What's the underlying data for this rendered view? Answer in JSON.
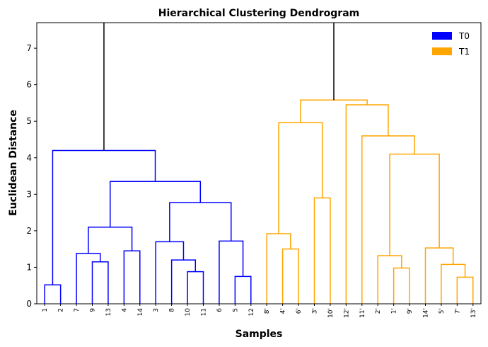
{
  "chart_data": {
    "type": "dendrogram",
    "title": "Hierarchical Clustering Dendrogram",
    "xlabel": "Samples",
    "ylabel": "Euclidean Distance",
    "ylim": [
      0,
      7.7
    ],
    "yticks": [
      0,
      1,
      2,
      3,
      4,
      5,
      6,
      7
    ],
    "leaf_labels": [
      "1",
      "2",
      "7",
      "9",
      "13",
      "4",
      "14",
      "3",
      "8",
      "10",
      "11",
      "6",
      "5",
      "12",
      "8'",
      "4'",
      "6'",
      "3'",
      "10'",
      "12'",
      "11'",
      "2'",
      "1'",
      "9'",
      "14'",
      "5'",
      "7'",
      "13'"
    ],
    "legend": [
      {
        "label": "T0",
        "color": "#0000ff"
      },
      {
        "label": "T1",
        "color": "#ffa500"
      }
    ],
    "link_color_above_threshold": "#000000",
    "root_height": 7.7,
    "merges": [
      {
        "id": "c1",
        "left": "1",
        "right": "2",
        "height": 0.52,
        "group": "T0"
      },
      {
        "id": "c2",
        "left": "9",
        "right": "13",
        "height": 1.15,
        "group": "T0"
      },
      {
        "id": "c3",
        "left": "7",
        "right": "c2",
        "height": 1.38,
        "group": "T0"
      },
      {
        "id": "c4",
        "left": "4",
        "right": "14",
        "height": 1.45,
        "group": "T0"
      },
      {
        "id": "c5",
        "left": "c3",
        "right": "c4",
        "height": 2.1,
        "group": "T0"
      },
      {
        "id": "c6",
        "left": "10",
        "right": "11",
        "height": 0.88,
        "group": "T0"
      },
      {
        "id": "c7",
        "left": "8",
        "right": "c6",
        "height": 1.2,
        "group": "T0"
      },
      {
        "id": "c8",
        "left": "3",
        "right": "c7",
        "height": 1.7,
        "group": "T0"
      },
      {
        "id": "c9",
        "left": "5",
        "right": "12",
        "height": 0.75,
        "group": "T0"
      },
      {
        "id": "c10",
        "left": "6",
        "right": "c9",
        "height": 1.72,
        "group": "T0"
      },
      {
        "id": "c11",
        "left": "c8",
        "right": "c10",
        "height": 2.77,
        "group": "T0"
      },
      {
        "id": "c12",
        "left": "c5",
        "right": "c11",
        "height": 3.35,
        "group": "T0"
      },
      {
        "id": "c13",
        "left": "c1",
        "right": "c12",
        "height": 4.2,
        "group": "T0"
      },
      {
        "id": "d1",
        "left": "4'",
        "right": "6'",
        "height": 1.5,
        "group": "T1"
      },
      {
        "id": "d2",
        "left": "8'",
        "right": "d1",
        "height": 1.92,
        "group": "T1"
      },
      {
        "id": "d3",
        "left": "3'",
        "right": "10'",
        "height": 2.9,
        "group": "T1"
      },
      {
        "id": "d4",
        "left": "d2",
        "right": "d3",
        "height": 4.96,
        "group": "T1"
      },
      {
        "id": "d5",
        "left": "1'",
        "right": "9'",
        "height": 0.98,
        "group": "T1"
      },
      {
        "id": "d6",
        "left": "2'",
        "right": "d5",
        "height": 1.32,
        "group": "T1"
      },
      {
        "id": "d7",
        "left": "7'",
        "right": "13'",
        "height": 0.73,
        "group": "T1"
      },
      {
        "id": "d8",
        "left": "5'",
        "right": "d7",
        "height": 1.08,
        "group": "T1"
      },
      {
        "id": "d9",
        "left": "14'",
        "right": "d8",
        "height": 1.53,
        "group": "T1"
      },
      {
        "id": "d10",
        "left": "d6",
        "right": "d9",
        "height": 4.1,
        "group": "T1"
      },
      {
        "id": "d11",
        "left": "11'",
        "right": "d10",
        "height": 4.6,
        "group": "T1"
      },
      {
        "id": "d12",
        "left": "12'",
        "right": "d11",
        "height": 5.45,
        "group": "T1"
      },
      {
        "id": "d13",
        "left": "d4",
        "right": "d12",
        "height": 5.58,
        "group": "T1"
      }
    ],
    "top_branches": [
      "c13",
      "d13"
    ]
  }
}
